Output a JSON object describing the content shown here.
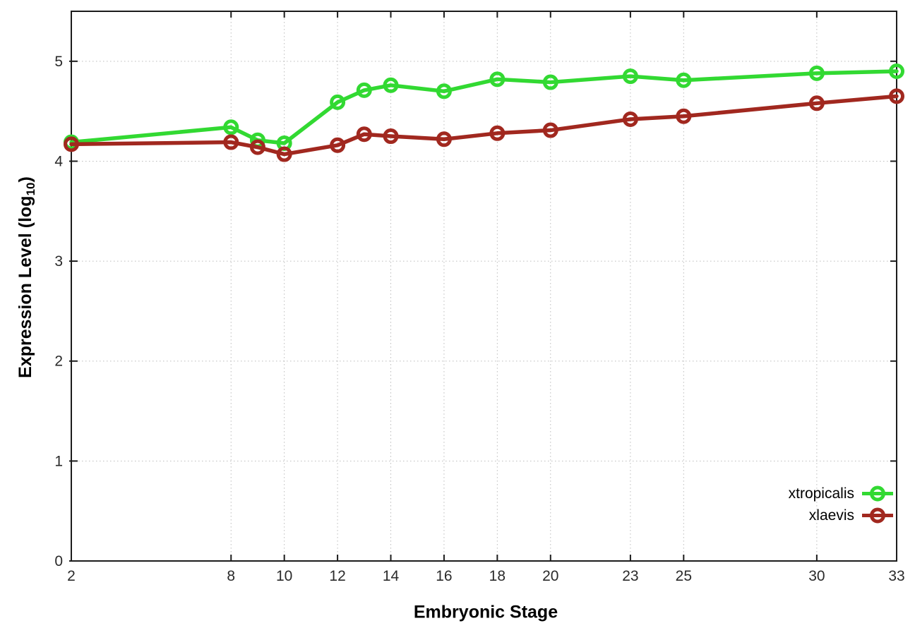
{
  "chart_data": {
    "type": "line",
    "title": "",
    "xlabel": "Embryonic Stage",
    "ylabel": "Expression Level (log10)",
    "ylabel_parts": {
      "main": "Expression Level (log",
      "sub": "10",
      "close": ")"
    },
    "x_ticks": [
      2,
      8,
      10,
      12,
      14,
      16,
      18,
      20,
      23,
      25,
      30,
      33
    ],
    "y_ticks": [
      0,
      1,
      2,
      3,
      4,
      5
    ],
    "xlim": [
      2,
      33
    ],
    "ylim": [
      0,
      5.5
    ],
    "grid": true,
    "legend_position": "bottom-right",
    "colors": {
      "frame": "#1c1c1c",
      "grid": "#bcbcbc",
      "tick_text": "#2a2a2a"
    },
    "series": [
      {
        "name": "xtropicalis",
        "color": "#32d932",
        "x": [
          2,
          8,
          9,
          10,
          12,
          13,
          14,
          16,
          18,
          20,
          23,
          25,
          30,
          33
        ],
        "values": [
          4.19,
          4.34,
          4.21,
          4.18,
          4.59,
          4.71,
          4.76,
          4.7,
          4.82,
          4.79,
          4.85,
          4.81,
          4.88,
          4.9
        ]
      },
      {
        "name": "xlaevis",
        "color": "#a1281f",
        "x": [
          2,
          8,
          9,
          10,
          12,
          13,
          14,
          16,
          18,
          20,
          23,
          25,
          30,
          33
        ],
        "values": [
          4.17,
          4.19,
          4.14,
          4.07,
          4.16,
          4.27,
          4.25,
          4.22,
          4.28,
          4.31,
          4.42,
          4.45,
          4.58,
          4.65
        ]
      }
    ]
  }
}
